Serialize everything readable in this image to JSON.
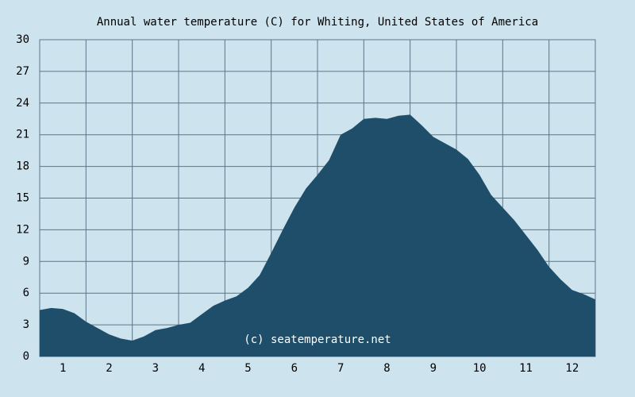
{
  "chart_data": {
    "type": "area",
    "title": "Annual water temperature (C) for Whiting, United States of America",
    "annotation": "(c) seatemperature.net",
    "x": [
      0.5,
      0.75,
      1,
      1.25,
      1.5,
      1.75,
      2,
      2.25,
      2.5,
      2.75,
      3,
      3.25,
      3.5,
      3.75,
      4,
      4.25,
      4.5,
      4.75,
      5,
      5.25,
      5.5,
      5.75,
      6,
      6.25,
      6.5,
      6.75,
      7,
      7.25,
      7.5,
      7.75,
      8,
      8.25,
      8.5,
      8.75,
      9,
      9.25,
      9.5,
      9.75,
      10,
      10.25,
      10.5,
      10.75,
      11,
      11.25,
      11.5,
      11.75,
      12,
      12.25,
      12.5
    ],
    "values": [
      4.4,
      4.6,
      4.5,
      4.1,
      3.3,
      2.7,
      2.1,
      1.7,
      1.5,
      1.9,
      2.5,
      2.7,
      3.0,
      3.2,
      4.0,
      4.8,
      5.3,
      5.7,
      6.5,
      7.7,
      9.8,
      12.0,
      14.1,
      15.9,
      17.2,
      18.6,
      21.0,
      21.6,
      22.5,
      22.6,
      22.5,
      22.8,
      22.9,
      21.9,
      20.8,
      20.2,
      19.6,
      18.7,
      17.2,
      15.3,
      14.1,
      12.9,
      11.5,
      10.1,
      8.5,
      7.3,
      6.3,
      5.9,
      5.4
    ],
    "color": "#1e4e69",
    "xlim": [
      0.5,
      12.5
    ],
    "xticks": [
      1,
      2,
      3,
      4,
      5,
      6,
      7,
      8,
      9,
      10,
      11,
      12
    ],
    "ylim": [
      0,
      30
    ],
    "yticks": [
      0,
      3,
      6,
      9,
      12,
      15,
      18,
      21,
      24,
      27,
      30
    ],
    "grid": true
  }
}
